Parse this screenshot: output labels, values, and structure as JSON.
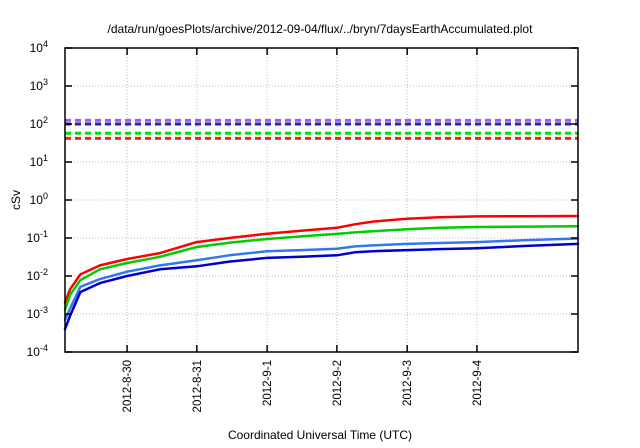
{
  "chart_data": {
    "type": "line",
    "title": "/data/run/goesPlots/archive/2012-09-04/flux/../bryn/7daysEarthAccumulated.plot",
    "xlabel": "Coordinated Universal Time (UTC)",
    "ylabel": "cSv",
    "y_scale": "log",
    "ylim": [
      0.0001,
      10000
    ],
    "y_tick_exponents": [
      4,
      3,
      2,
      1,
      0,
      -1,
      -2,
      -3,
      -4
    ],
    "grid": true,
    "grid_color": "#bbbbbb",
    "axis_color": "#000000",
    "x_ticks": [
      {
        "label": "2012-8-30",
        "pos": 0.121
      },
      {
        "label": "2012-8-31",
        "pos": 0.257
      },
      {
        "label": "2012-9-1",
        "pos": 0.394
      },
      {
        "label": "2012-9-2",
        "pos": 0.53
      },
      {
        "label": "2012-9-3",
        "pos": 0.667
      },
      {
        "label": "2012-9-4",
        "pos": 0.803
      }
    ],
    "threshold_lines": [
      {
        "name": "limit-purple",
        "color": "#aa55ee",
        "value": 125,
        "style": "dashed"
      },
      {
        "name": "limit-blue",
        "color": "#2222cc",
        "value": 100,
        "style": "dashed"
      },
      {
        "name": "limit-green",
        "color": "#00dd00",
        "value": 57,
        "style": "dashed"
      },
      {
        "name": "limit-red",
        "color": "#ee2222",
        "value": 42,
        "style": "dashed"
      }
    ],
    "series": [
      {
        "name": "accumulated-dose-red",
        "color": "#ff0000",
        "points": [
          [
            0,
            0.002
          ],
          [
            0.01,
            0.0045
          ],
          [
            0.03,
            0.011
          ],
          [
            0.068,
            0.019
          ],
          [
            0.121,
            0.028
          ],
          [
            0.185,
            0.04
          ],
          [
            0.257,
            0.078
          ],
          [
            0.32,
            0.1
          ],
          [
            0.394,
            0.13
          ],
          [
            0.46,
            0.155
          ],
          [
            0.53,
            0.185
          ],
          [
            0.565,
            0.23
          ],
          [
            0.6,
            0.27
          ],
          [
            0.667,
            0.32
          ],
          [
            0.73,
            0.35
          ],
          [
            0.803,
            0.37
          ],
          [
            0.9,
            0.375
          ],
          [
            1,
            0.38
          ]
        ]
      },
      {
        "name": "accumulated-dose-green",
        "color": "#00cc00",
        "points": [
          [
            0,
            0.0013
          ],
          [
            0.01,
            0.0032
          ],
          [
            0.03,
            0.0078
          ],
          [
            0.068,
            0.015
          ],
          [
            0.121,
            0.022
          ],
          [
            0.185,
            0.032
          ],
          [
            0.257,
            0.058
          ],
          [
            0.32,
            0.075
          ],
          [
            0.394,
            0.094
          ],
          [
            0.46,
            0.11
          ],
          [
            0.53,
            0.128
          ],
          [
            0.565,
            0.14
          ],
          [
            0.6,
            0.15
          ],
          [
            0.667,
            0.17
          ],
          [
            0.73,
            0.185
          ],
          [
            0.803,
            0.195
          ],
          [
            0.9,
            0.2
          ],
          [
            1,
            0.205
          ]
        ]
      },
      {
        "name": "accumulated-dose-light-blue",
        "color": "#3377ee",
        "points": [
          [
            0,
            0.0007
          ],
          [
            0.01,
            0.0014
          ],
          [
            0.03,
            0.0052
          ],
          [
            0.068,
            0.0083
          ],
          [
            0.121,
            0.013
          ],
          [
            0.185,
            0.019
          ],
          [
            0.257,
            0.026
          ],
          [
            0.32,
            0.035
          ],
          [
            0.394,
            0.045
          ],
          [
            0.46,
            0.048
          ],
          [
            0.53,
            0.052
          ],
          [
            0.565,
            0.06
          ],
          [
            0.6,
            0.064
          ],
          [
            0.667,
            0.07
          ],
          [
            0.73,
            0.074
          ],
          [
            0.803,
            0.078
          ],
          [
            0.9,
            0.088
          ],
          [
            1,
            0.097
          ]
        ]
      },
      {
        "name": "accumulated-dose-dark-blue",
        "color": "#0000cc",
        "points": [
          [
            0,
            0.0004
          ],
          [
            0.01,
            0.0009
          ],
          [
            0.03,
            0.0038
          ],
          [
            0.068,
            0.0065
          ],
          [
            0.121,
            0.01
          ],
          [
            0.185,
            0.015
          ],
          [
            0.257,
            0.018
          ],
          [
            0.32,
            0.024
          ],
          [
            0.394,
            0.03
          ],
          [
            0.46,
            0.032
          ],
          [
            0.53,
            0.035
          ],
          [
            0.565,
            0.042
          ],
          [
            0.6,
            0.045
          ],
          [
            0.667,
            0.048
          ],
          [
            0.73,
            0.051
          ],
          [
            0.803,
            0.054
          ],
          [
            0.9,
            0.062
          ],
          [
            1,
            0.07
          ]
        ]
      }
    ]
  }
}
